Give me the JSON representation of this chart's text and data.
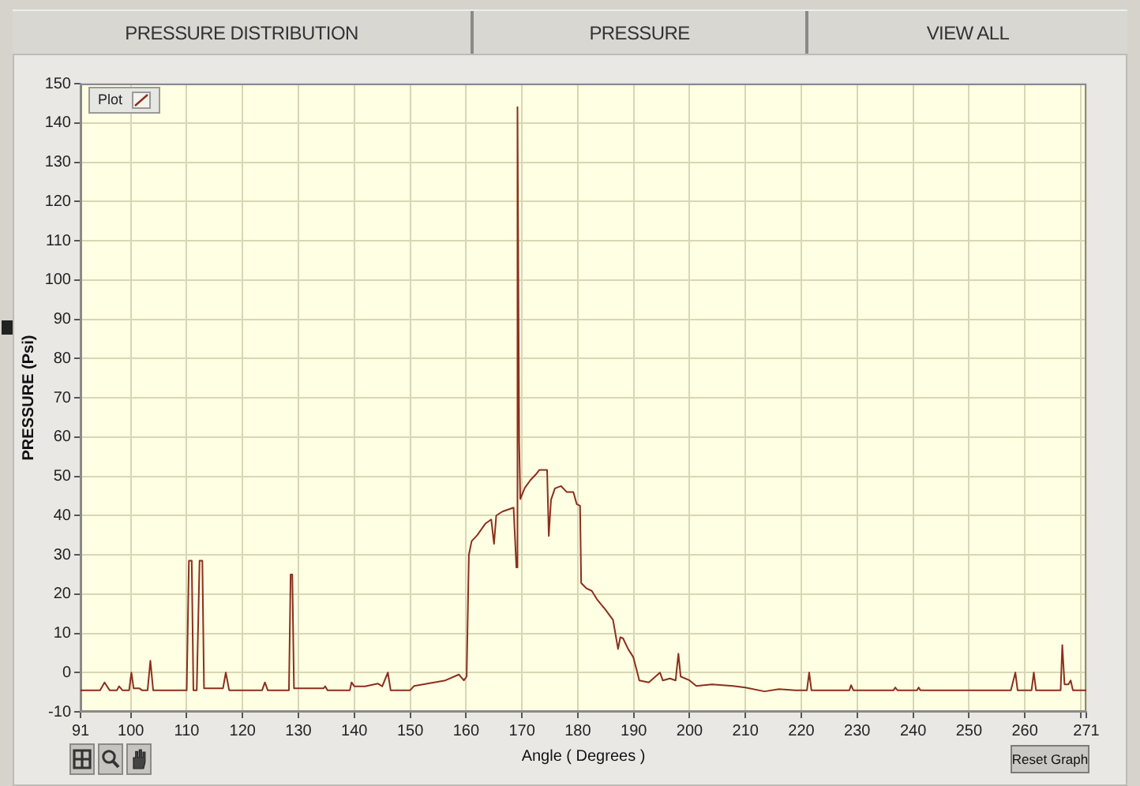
{
  "chart_data": {
    "type": "line",
    "xlabel": "Angle ( Degrees )",
    "ylabel": "PRESSURE (Psi)",
    "annotations": [
      "PRESSURE DISTRIBUTION",
      "PRESSURE",
      "VIEW ALL",
      "Reset Graph"
    ],
    "x": [
      91,
      94.5,
      95.3,
      96.2,
      97.5,
      97.9,
      98.5,
      99.7,
      100.1,
      100.5,
      101.5,
      102,
      103,
      103.5,
      104,
      110,
      110.4,
      110.9,
      111.2,
      111.8,
      112.3,
      112.8,
      113.1,
      116.5,
      117,
      117.6,
      123.5,
      124,
      124.5,
      128.3,
      128.6,
      128.9,
      129.2,
      134.5,
      134.8,
      135.2,
      139.2,
      139.5,
      140,
      141.9,
      144.2,
      145,
      146,
      146.5,
      150,
      150.7,
      153.1,
      156.3,
      158.7,
      159.6,
      160.1,
      160.5,
      161,
      162,
      163,
      163.5,
      164.5,
      165,
      165.4,
      166.5,
      167.5,
      168.5,
      169,
      169.2,
      169.5,
      169.7,
      170.5,
      171.5,
      172.5,
      173.1,
      174.5,
      174.8,
      175.2,
      175.9,
      177,
      178,
      179.2,
      179.8,
      180.4,
      180.6,
      181.5,
      182.5,
      183.5,
      184.9,
      186.3,
      187.2,
      187.6,
      188.1,
      189,
      189.9,
      190.5,
      191,
      192.7,
      193.5,
      194.7,
      195.2,
      196.5,
      197.5,
      198,
      198.4,
      200,
      201.2,
      204,
      207.8,
      210,
      213.4,
      216,
      219,
      221,
      221.4,
      221.8,
      228.6,
      228.9,
      229.3,
      236.5,
      236.8,
      237.2,
      240.7,
      241,
      241.3,
      257.5,
      258.3,
      258.7,
      261.2,
      261.6,
      262,
      266.4,
      266.7,
      267.1,
      267.8,
      268.2,
      268.6,
      271
    ],
    "series": [
      {
        "name": "Plot",
        "color": "#8c2f1e",
        "values": [
          -4.5,
          -4.5,
          -2.5,
          -4.5,
          -4.5,
          -3.5,
          -4.5,
          -4.5,
          0,
          -4,
          -4,
          -4.5,
          -4.5,
          3,
          -4.5,
          -4.5,
          28.5,
          28.5,
          -4.5,
          -4.5,
          28.5,
          28.5,
          -4,
          -4,
          0,
          -4.5,
          -4.5,
          -2.5,
          -4.5,
          -4.5,
          25,
          25,
          -4,
          -4,
          -3.5,
          -4.5,
          -4.5,
          -2.5,
          -3.5,
          -3.5,
          -2.8,
          -3.5,
          0,
          -4.5,
          -4.5,
          -3.4,
          -2.8,
          -2,
          -0.5,
          -2,
          -1,
          30,
          33.5,
          35,
          37,
          38,
          39,
          32.8,
          40,
          41,
          41.5,
          42,
          26.8,
          144,
          58.9,
          44.2,
          47,
          49,
          50.5,
          51.6,
          51.6,
          34.8,
          44,
          46.9,
          47.5,
          46,
          46,
          42.9,
          42.5,
          22.8,
          21.5,
          20.8,
          18.5,
          16.1,
          13.4,
          6,
          9,
          8.7,
          6,
          4,
          0.8,
          -2,
          -2.5,
          -1.5,
          0,
          -2,
          -1.5,
          -2,
          4.8,
          -1,
          -2,
          -3.4,
          -3,
          -3.4,
          -3.8,
          -4.8,
          -4.2,
          -4.5,
          -4.5,
          0,
          -4.5,
          -4.5,
          -3.2,
          -4.5,
          -4.5,
          -3.8,
          -4.5,
          -4.5,
          -3.8,
          -4.5,
          -4.5,
          0,
          -4.5,
          -4.5,
          0,
          -4.5,
          -4.5,
          7,
          -3,
          -3,
          -2,
          -4.5,
          -4.5
        ]
      }
    ],
    "xlim": [
      91,
      271
    ],
    "xticks": [
      91,
      100,
      110,
      120,
      130,
      140,
      150,
      160,
      170,
      180,
      190,
      200,
      210,
      220,
      230,
      240,
      250,
      260,
      {
        "value": 270,
        "label": null
      },
      271
    ],
    "ylim": [
      -10,
      150
    ],
    "yticks": [
      -10,
      0,
      10,
      20,
      30,
      40,
      50,
      60,
      70,
      80,
      90,
      100,
      110,
      120,
      130,
      140,
      150
    ],
    "grid": true,
    "legend": "top left",
    "marker": "none",
    "line_style": "solid"
  }
}
